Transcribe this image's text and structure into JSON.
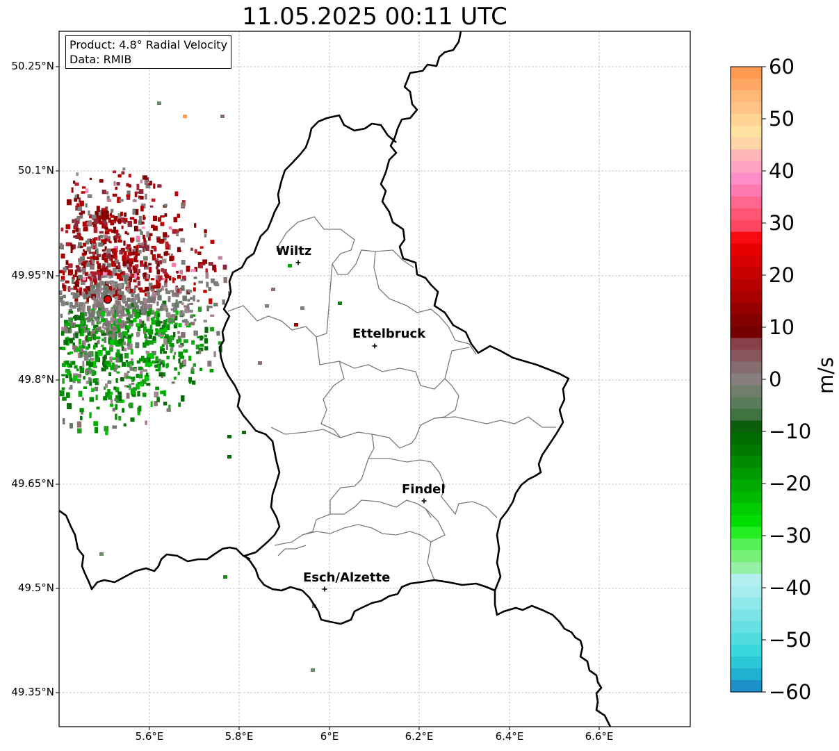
{
  "title": "11.05.2025 00:11 UTC",
  "info": {
    "product": "Product: 4.8° Radial Velocity",
    "source": "Data: RMIB"
  },
  "map": {
    "lat_ticks": [
      "50.25°N",
      "50.1°N",
      "49.95°N",
      "49.8°N",
      "49.65°N",
      "49.5°N",
      "49.35°N"
    ],
    "lon_ticks": [
      "5.6°E",
      "5.8°E",
      "6°E",
      "6.2°E",
      "6.4°E",
      "6.6°E"
    ],
    "gridlines": true,
    "radar_site_color": "#e00000",
    "cities": [
      {
        "name": "Wiltz"
      },
      {
        "name": "Ettelbruck"
      },
      {
        "name": "Findel"
      },
      {
        "name": "Esch/Alzette"
      }
    ]
  },
  "colorbar": {
    "unit": "m/s",
    "range": [
      -60,
      60
    ],
    "ticks": [
      "60",
      "50",
      "40",
      "30",
      "20",
      "10",
      "0",
      "−10",
      "−20",
      "−30",
      "−40",
      "−50",
      "−60"
    ],
    "colors_top_to_bottom": [
      "#ff9a50",
      "#ffa865",
      "#ffb878",
      "#ffc485",
      "#ffd494",
      "#ffe2a0",
      "#ffd6a8",
      "#ffb6b6",
      "#ffa3c0",
      "#ff8ec8",
      "#ff7ab0",
      "#ff6690",
      "#ff5575",
      "#ff4560",
      "#f70a10",
      "#e80000",
      "#d80000",
      "#c80000",
      "#b80000",
      "#a80000",
      "#960000",
      "#850000",
      "#740000",
      "#8a4048",
      "#87555e",
      "#866d70",
      "#857e7c",
      "#6f7f6c",
      "#5a7c5a",
      "#3f7340",
      "#0c5e0c",
      "#006c00",
      "#007a00",
      "#008a00",
      "#009900",
      "#00aa00",
      "#00ba00",
      "#00cc00",
      "#00dd00",
      "#22ee22",
      "#55f055",
      "#77f077",
      "#95f0a5",
      "#b5eef0",
      "#a6ecee",
      "#90e8ea",
      "#7ce4e6",
      "#66e0e3",
      "#50dcdf",
      "#3ad8dc",
      "#2cc8d8",
      "#20b0d0",
      "#1c90c8"
    ]
  }
}
